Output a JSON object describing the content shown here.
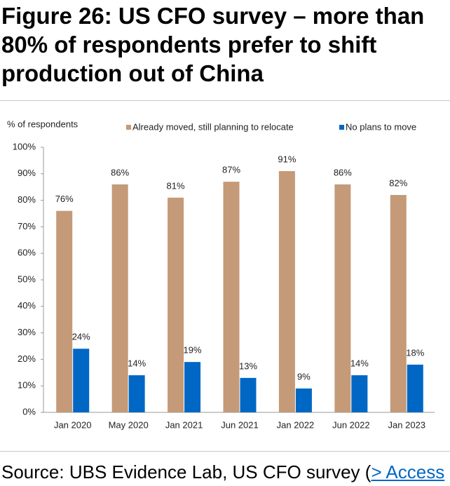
{
  "chart_data": {
    "type": "bar",
    "title": "Figure 26: US CFO survey – more than 80% of respondents prefer to shift production out of China",
    "y_label": "% of respondents",
    "categories": [
      "Jan 2020",
      "May 2020",
      "Jan 2021",
      "Jun 2021",
      "Jan 2022",
      "Jun 2022",
      "Jan 2023"
    ],
    "series": [
      {
        "name": "Already moved, still planning to relocate",
        "color": "#c49a78",
        "values": [
          76,
          86,
          81,
          87,
          91,
          86,
          82
        ],
        "value_labels": [
          "76%",
          "86%",
          "81%",
          "87%",
          "91%",
          "86%",
          "82%"
        ]
      },
      {
        "name": "No plans to move",
        "color": "#0067c5",
        "values": [
          24,
          14,
          19,
          13,
          9,
          14,
          18
        ],
        "value_labels": [
          "24%",
          "14%",
          "19%",
          "13%",
          "9%",
          "14%",
          "18%"
        ]
      }
    ],
    "ylim": [
      0,
      100
    ],
    "yticks": [
      {
        "value": 0,
        "label": "0%"
      },
      {
        "value": 10,
        "label": "10%"
      },
      {
        "value": 20,
        "label": "20%"
      },
      {
        "value": 30,
        "label": "30%"
      },
      {
        "value": 40,
        "label": "40%"
      },
      {
        "value": 50,
        "label": "50%"
      },
      {
        "value": 60,
        "label": "60%"
      },
      {
        "value": 70,
        "label": "70%"
      },
      {
        "value": 80,
        "label": "80%"
      },
      {
        "value": 90,
        "label": "90%"
      },
      {
        "value": 100,
        "label": "100%"
      }
    ],
    "source": "Source: UBS Evidence Lab, US CFO survey (",
    "source_link": "> Access"
  }
}
